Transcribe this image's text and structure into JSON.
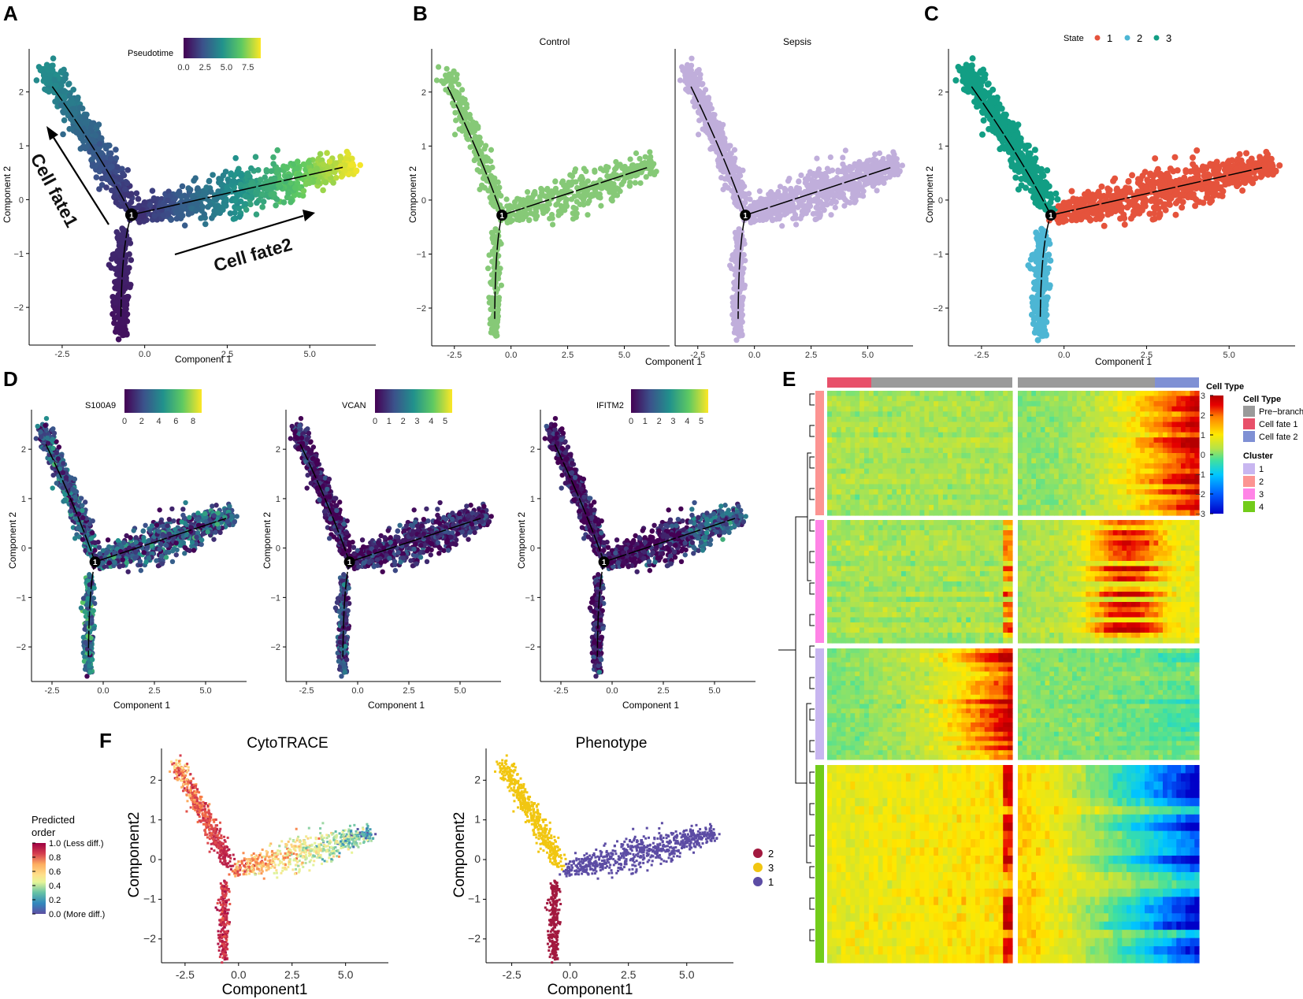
{
  "figure_labels": {
    "A": "A",
    "B": "B",
    "C": "C",
    "D": "D",
    "E": "E",
    "F": "F"
  },
  "branch_node_label": "1",
  "colors": {
    "viridis": [
      "#440154",
      "#3b528b",
      "#21918c",
      "#5ec962",
      "#fde725"
    ],
    "control": "#86c977",
    "sepsis": "#c0aedb",
    "state1": "#e5533c",
    "state2": "#4db6d4",
    "state3": "#129e84",
    "phenotype2": "#a2193f",
    "phenotype3": "#f1c611",
    "phenotype1": "#5c4ca4",
    "predicted": [
      "#5e4fa2",
      "#3288bd",
      "#66c2a5",
      "#abdda4",
      "#e6f598",
      "#fee08b",
      "#fdae61",
      "#f46d43",
      "#d53e4f",
      "#9e0142"
    ],
    "heat": [
      "#0000c8",
      "#0060ff",
      "#00c8ff",
      "#40e0a0",
      "#b4e34a",
      "#ffe800",
      "#ff8000",
      "#e60000",
      "#b40000"
    ],
    "pre_branch": "#9a9a9a",
    "cell_fate1_bar": "#e8506a",
    "cell_fate2_bar": "#7f90d4",
    "cluster1": "#c8b6f0",
    "cluster2": "#fc9492",
    "cluster3": "#ff84e6",
    "cluster4": "#72cc1a"
  },
  "chart_data": [
    {
      "id": "A",
      "type": "scatter",
      "xlabel": "Component 1",
      "ylabel": "Component 2",
      "xlim": [
        -3.5,
        7.0
      ],
      "ylim": [
        -2.7,
        2.8
      ],
      "xticks": [
        -2.5,
        0.0,
        2.5,
        5.0
      ],
      "xtick_labels": [
        "-2.5",
        "0.0",
        "2.5",
        "5.0"
      ],
      "yticks": [
        -2,
        -1,
        0,
        1,
        2
      ],
      "ytick_labels": [
        "−2",
        "−1",
        "0",
        "1",
        "2"
      ],
      "color_by": "Pseudotime",
      "legend": {
        "title": "Pseudotime",
        "ticks": [
          0.0,
          2.5,
          5.0,
          7.5
        ],
        "tick_labels": [
          "0.0",
          "2.5",
          "5.0",
          "7.5"
        ],
        "range": [
          0,
          9
        ]
      },
      "annotations": [
        "Cell fate1",
        "Cell fate2"
      ]
    },
    {
      "id": "B",
      "type": "scatter",
      "facets": [
        "Control",
        "Sepsis"
      ],
      "xlabel": "Component 1",
      "ylabel": "Component 2",
      "xlim": [
        -3.5,
        7.0
      ],
      "ylim": [
        -2.7,
        2.8
      ],
      "xticks": [
        -2.5,
        0.0,
        2.5,
        5.0
      ],
      "xtick_labels": [
        "-2.5",
        "0.0",
        "2.5",
        "5.0"
      ],
      "yticks": [
        -2,
        -1,
        0,
        1,
        2
      ],
      "ytick_labels": [
        "−2",
        "−1",
        "0",
        "1",
        "2"
      ],
      "series": [
        {
          "name": "Control",
          "color": "#86c977"
        },
        {
          "name": "Sepsis",
          "color": "#c0aedb"
        }
      ]
    },
    {
      "id": "C",
      "type": "scatter",
      "xlabel": "Component 1",
      "ylabel": "Component 2",
      "xlim": [
        -3.5,
        7.0
      ],
      "ylim": [
        -2.7,
        2.8
      ],
      "xticks": [
        -2.5,
        0.0,
        2.5,
        5.0
      ],
      "xtick_labels": [
        "-2.5",
        "0.0",
        "2.5",
        "5.0"
      ],
      "yticks": [
        -2,
        -1,
        0,
        1,
        2
      ],
      "ytick_labels": [
        "−2",
        "−1",
        "0",
        "1",
        "2"
      ],
      "legend": {
        "title": "State",
        "entries": [
          "1",
          "2",
          "3"
        ]
      }
    },
    {
      "id": "D",
      "type": "scatter",
      "facets": [
        "S100A9",
        "VCAN",
        "IFITM2"
      ],
      "xlabel": "Component 1",
      "ylabel": "Component 2",
      "xlim": [
        -3.5,
        7.0
      ],
      "ylim": [
        -2.7,
        2.8
      ],
      "xticks": [
        -2.5,
        0.0,
        2.5,
        5.0
      ],
      "xtick_labels": [
        "-2.5",
        "0.0",
        "2.5",
        "5.0"
      ],
      "yticks": [
        -2,
        -1,
        0,
        1,
        2
      ],
      "ytick_labels": [
        "−2",
        "−1",
        "0",
        "1",
        "2"
      ],
      "legends": [
        {
          "gene": "S100A9",
          "ticks": [
            0,
            2,
            4,
            6,
            8
          ],
          "tick_labels": [
            "0",
            "2",
            "4",
            "6",
            "8"
          ],
          "range": [
            0,
            9
          ]
        },
        {
          "gene": "VCAN",
          "ticks": [
            0,
            1,
            2,
            3,
            4,
            5
          ],
          "tick_labels": [
            "0",
            "1",
            "2",
            "3",
            "4",
            "5"
          ],
          "range": [
            0,
            5.5
          ]
        },
        {
          "gene": "IFITM2",
          "ticks": [
            0,
            1,
            2,
            3,
            4,
            5
          ],
          "tick_labels": [
            "0",
            "1",
            "2",
            "3",
            "4",
            "5"
          ],
          "range": [
            0,
            5.5
          ]
        }
      ]
    },
    {
      "id": "E",
      "type": "heatmap",
      "colorbar": {
        "ticks": [
          3,
          2,
          1,
          0,
          -1,
          -2,
          -3
        ],
        "tick_labels": [
          "3",
          "2",
          "1",
          "0",
          "−1",
          "−2",
          "−3"
        ],
        "range": [
          -3,
          3
        ]
      },
      "cell_type_title": "Cell Type",
      "cell_type_legend": {
        "title": "Cell Type",
        "entries": [
          "Pre−branch",
          "Cell fate 1",
          "Cell fate 2"
        ]
      },
      "cluster_legend": {
        "title": "Cluster",
        "entries": [
          "1",
          "2",
          "3",
          "4"
        ]
      },
      "clusters_top_to_bottom": [
        "2",
        "3",
        "1",
        "4"
      ],
      "cluster_row_counts": [
        120,
        120,
        110,
        190
      ]
    },
    {
      "id": "F",
      "type": "scatter",
      "facets": [
        "CytoTRACE",
        "Phenotype"
      ],
      "xlabel": "Component1",
      "ylabel": "Component2",
      "xlim": [
        -3.6,
        7.0
      ],
      "ylim": [
        -2.6,
        2.8
      ],
      "xticks": [
        -2.5,
        0.0,
        2.5,
        5.0
      ],
      "xtick_labels": [
        "-2.5",
        "0.0",
        "2.5",
        "5.0"
      ],
      "yticks": [
        -2,
        -1,
        0,
        1,
        2
      ],
      "ytick_labels": [
        "−2",
        "−1",
        "0",
        "1",
        "2"
      ],
      "predicted_legend": {
        "title_lines": [
          "Predicted",
          "order"
        ],
        "ticks": [
          1.0,
          0.8,
          0.6,
          0.4,
          0.2,
          0.0
        ],
        "tick_labels": [
          "1.0 (Less diff.)",
          "0.8",
          "0.6",
          "0.4",
          "0.2",
          "0.0 (More diff.)"
        ]
      },
      "phenotype_legend": {
        "entries": [
          "2",
          "3",
          "1"
        ]
      }
    }
  ]
}
